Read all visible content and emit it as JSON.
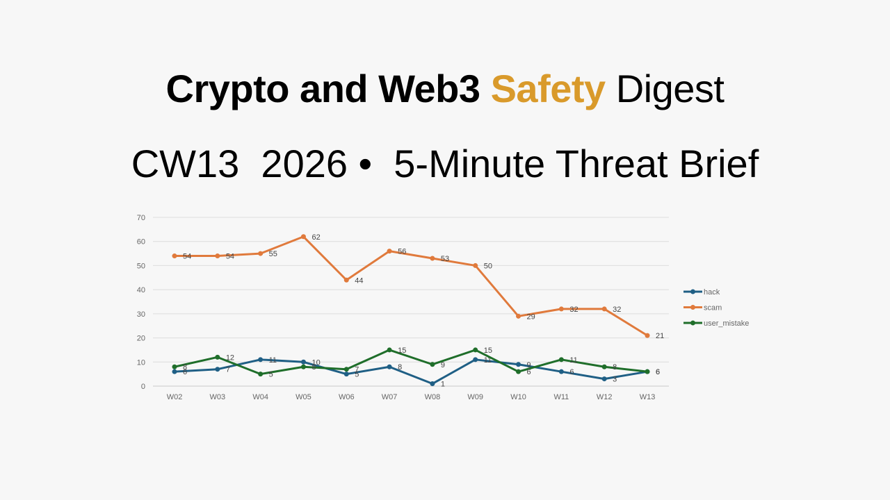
{
  "header": {
    "title_part1": "Crypto and Web3 ",
    "title_accent": "Safety",
    "title_part2": " Digest",
    "accent_color": "#d99a2b",
    "subtitle": "CW13  2026 •  5-Minute Threat Brief"
  },
  "chart_data": {
    "type": "line",
    "title": "",
    "xlabel": "",
    "ylabel": "",
    "categories": [
      "W02",
      "W03",
      "W04",
      "W05",
      "W06",
      "W07",
      "W08",
      "W09",
      "W10",
      "W11",
      "W12",
      "W13"
    ],
    "series": [
      {
        "name": "hack",
        "color": "#1f5f85",
        "values": [
          6,
          7,
          11,
          10,
          5,
          8,
          1,
          11,
          9,
          6,
          3,
          6
        ]
      },
      {
        "name": "scam",
        "color": "#e07a3c",
        "values": [
          54,
          54,
          55,
          62,
          44,
          56,
          53,
          50,
          29,
          32,
          32,
          21
        ]
      },
      {
        "name": "user_mistake",
        "color": "#1f6e2a",
        "values": [
          8,
          12,
          5,
          8,
          7,
          15,
          9,
          15,
          6,
          11,
          8,
          6
        ]
      }
    ],
    "yticks": [
      0,
      10,
      20,
      30,
      40,
      50,
      60,
      70
    ],
    "ylim": [
      0,
      70
    ],
    "grid": true,
    "data_labels": true,
    "legend_position": "right"
  }
}
